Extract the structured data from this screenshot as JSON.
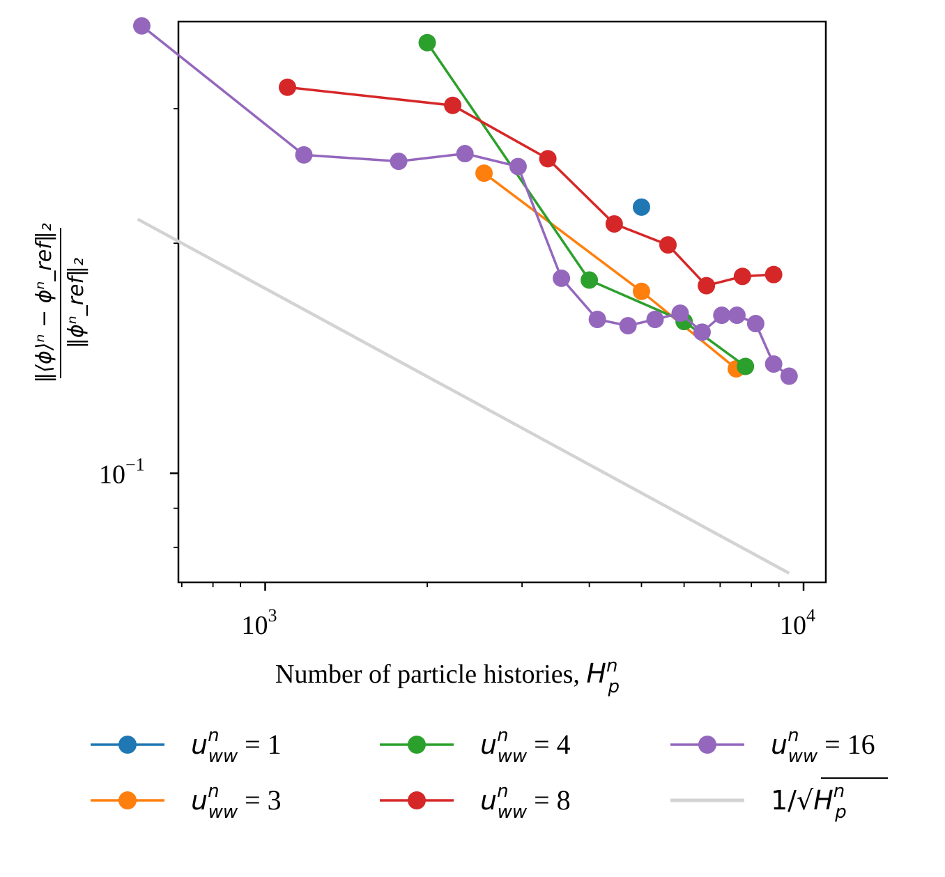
{
  "chart_data": {
    "type": "line",
    "xscale": "log",
    "yscale": "log",
    "xlim": [
      690,
      11000
    ],
    "ylim": [
      0.072,
      0.39
    ],
    "xlabel": "Number of particle histories, ",
    "xlabel_math": "H",
    "xlabel_math_sup": "n",
    "xlabel_math_sub": "p",
    "ylabel_numerator": "‖⟨ϕ⟩ⁿ − ϕⁿ_ref‖₂",
    "ylabel_denominator": "‖ϕⁿ_ref‖₂",
    "x_ticks": [
      {
        "value": 1000,
        "base": "10",
        "exp": "3"
      },
      {
        "value": 10000,
        "base": "10",
        "exp": "4"
      }
    ],
    "y_ticks": [
      {
        "value": 0.1,
        "base": "10",
        "exp": "−1"
      }
    ],
    "x_minor_ticks": [
      700,
      800,
      900,
      2000,
      3000,
      4000,
      5000,
      6000,
      7000,
      8000,
      9000
    ],
    "y_minor_ticks": [
      0.08,
      0.09,
      0.2,
      0.3
    ],
    "legend_location": "below",
    "series": [
      {
        "name": "u_ww^n = 1",
        "legend_value": "1",
        "color": "#1f77b4",
        "marker": true,
        "points": [
          [
            5000,
            0.223
          ]
        ]
      },
      {
        "name": "u_ww^n = 3",
        "legend_value": "3",
        "color": "#ff7f0e",
        "marker": true,
        "points": [
          [
            2550,
            0.247
          ],
          [
            5000,
            0.173
          ],
          [
            7500,
            0.137
          ]
        ]
      },
      {
        "name": "u_ww^n = 4",
        "legend_value": "4",
        "color": "#2ca02c",
        "marker": true,
        "points": [
          [
            2000,
            0.366
          ],
          [
            4000,
            0.179
          ],
          [
            6000,
            0.158
          ],
          [
            7800,
            0.138
          ]
        ]
      },
      {
        "name": "u_ww^n = 8",
        "legend_value": "8",
        "color": "#d62728",
        "marker": true,
        "points": [
          [
            1100,
            0.32
          ],
          [
            2230,
            0.303
          ],
          [
            3350,
            0.258
          ],
          [
            4450,
            0.212
          ],
          [
            5600,
            0.199
          ],
          [
            6600,
            0.176
          ],
          [
            7700,
            0.181
          ],
          [
            8800,
            0.182
          ]
        ]
      },
      {
        "name": "u_ww^n = 16",
        "legend_value": "16",
        "color": "#9467bd",
        "marker": true,
        "points": [
          [
            590,
            0.385
          ],
          [
            1180,
            0.261
          ],
          [
            1770,
            0.256
          ],
          [
            2350,
            0.262
          ],
          [
            2950,
            0.252
          ],
          [
            3550,
            0.18
          ],
          [
            4140,
            0.159
          ],
          [
            4720,
            0.156
          ],
          [
            5300,
            0.159
          ],
          [
            5900,
            0.162
          ],
          [
            6480,
            0.153
          ],
          [
            7050,
            0.161
          ],
          [
            7520,
            0.161
          ],
          [
            8150,
            0.157
          ],
          [
            8800,
            0.139
          ],
          [
            9400,
            0.134
          ]
        ]
      },
      {
        "name": "1/sqrt(H_p^n)",
        "color": "#d3d3d3",
        "marker": false,
        "points": [
          [
            580,
            0.215
          ],
          [
            9400,
            0.074
          ]
        ]
      }
    ],
    "legend": [
      {
        "series": 0,
        "prefix": "u",
        "sup": "n",
        "sub": "ww",
        "rest": " = 1"
      },
      {
        "series": 1,
        "prefix": "u",
        "sup": "n",
        "sub": "ww",
        "rest": " = 3"
      },
      {
        "series": 2,
        "prefix": "u",
        "sup": "n",
        "sub": "ww",
        "rest": " = 4"
      },
      {
        "series": 3,
        "prefix": "u",
        "sup": "n",
        "sub": "ww",
        "rest": " = 8"
      },
      {
        "series": 4,
        "prefix": "u",
        "sup": "n",
        "sub": "ww",
        "rest": " = 16"
      },
      {
        "series": 5,
        "prefix": "1/√",
        "sup": "n",
        "sub": "p",
        "rest": "",
        "sqrt_arg": "H"
      }
    ]
  }
}
